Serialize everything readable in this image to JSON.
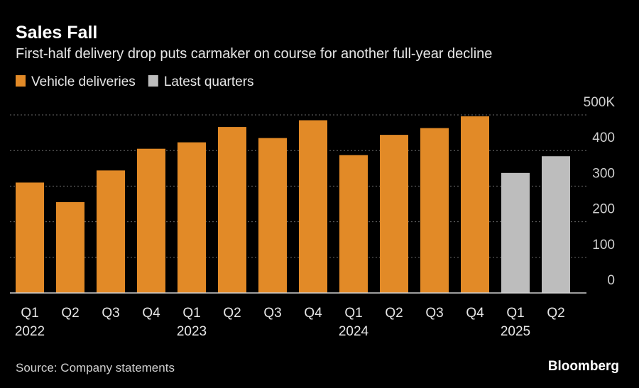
{
  "chart_data": {
    "type": "bar",
    "title": "Sales Fall",
    "subtitle": "First-half delivery drop puts carmaker on course for another full-year decline",
    "source": "Source: Company statements",
    "brand": "Bloomberg",
    "categories": [
      "Q1",
      "Q2",
      "Q3",
      "Q4",
      "Q1",
      "Q2",
      "Q3",
      "Q4",
      "Q1",
      "Q2",
      "Q3",
      "Q4",
      "Q1",
      "Q2"
    ],
    "year_labels": [
      "2022",
      null,
      null,
      null,
      "2023",
      null,
      null,
      null,
      "2024",
      null,
      null,
      null,
      "2025",
      null
    ],
    "series": [
      {
        "name": "Vehicle deliveries",
        "color": "#e28a27",
        "values": [
          310,
          255,
          344,
          405,
          423,
          466,
          435,
          485,
          387,
          444,
          463,
          496,
          null,
          null
        ]
      },
      {
        "name": "Latest quarters",
        "color": "#bdbdbd",
        "values": [
          null,
          null,
          null,
          null,
          null,
          null,
          null,
          null,
          null,
          null,
          null,
          null,
          337,
          384
        ]
      }
    ],
    "ylim": [
      0,
      500
    ],
    "yticks": [
      0,
      100,
      200,
      300,
      400,
      {
        "value": 500,
        "label": "500K"
      }
    ],
    "grid": true
  }
}
